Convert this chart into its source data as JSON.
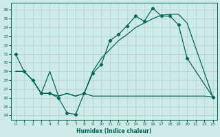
{
  "xlabel": "Humidex (Indice chaleur)",
  "xlim": [
    -0.5,
    23.5
  ],
  "ylim": [
    23.5,
    36.8
  ],
  "yticks": [
    24,
    25,
    26,
    27,
    28,
    29,
    30,
    31,
    32,
    33,
    34,
    35,
    36
  ],
  "xticks": [
    0,
    1,
    2,
    3,
    4,
    5,
    6,
    7,
    8,
    9,
    10,
    11,
    12,
    13,
    14,
    15,
    16,
    17,
    18,
    19,
    20,
    21,
    22,
    23
  ],
  "background_color": "#ceeae6",
  "grid_color": "#aad4ce",
  "line_color": "#006658",
  "line1_x": [
    0,
    1,
    2,
    3,
    4,
    5,
    6,
    7,
    8,
    9,
    10,
    11,
    12,
    13,
    14,
    15,
    16,
    17,
    18,
    19,
    20,
    23
  ],
  "line1_y": [
    31,
    29,
    28,
    26.5,
    26.5,
    26.0,
    24.3,
    24.1,
    26.5,
    28.8,
    29.8,
    32.5,
    33.2,
    34.2,
    35.3,
    34.7,
    36.2,
    35.3,
    35.3,
    34.3,
    30.5,
    26.1
  ],
  "line2_x": [
    0,
    1,
    2,
    3,
    4,
    5,
    6,
    7,
    8,
    9,
    10,
    11,
    12,
    13,
    14,
    15,
    16,
    17,
    18,
    19,
    20,
    21,
    22,
    23
  ],
  "line2_y": [
    29.0,
    29.0,
    28.0,
    26.5,
    26.5,
    26.2,
    26.5,
    26.2,
    26.5,
    26.2,
    26.2,
    26.2,
    26.2,
    26.2,
    26.2,
    26.2,
    26.2,
    26.2,
    26.2,
    26.2,
    26.2,
    26.2,
    26.2,
    26.1
  ],
  "line3_x": [
    0,
    1,
    2,
    3,
    4,
    5,
    6,
    7,
    8,
    9,
    10,
    11,
    12,
    13,
    14,
    15,
    16,
    17,
    18,
    19,
    20,
    23
  ],
  "line3_y": [
    29.0,
    29.0,
    28.0,
    26.5,
    29.0,
    26.2,
    26.5,
    26.2,
    26.5,
    29.0,
    30.5,
    31.5,
    32.5,
    33.2,
    34.0,
    34.5,
    35.0,
    35.4,
    35.5,
    35.5,
    34.5,
    26.1
  ]
}
